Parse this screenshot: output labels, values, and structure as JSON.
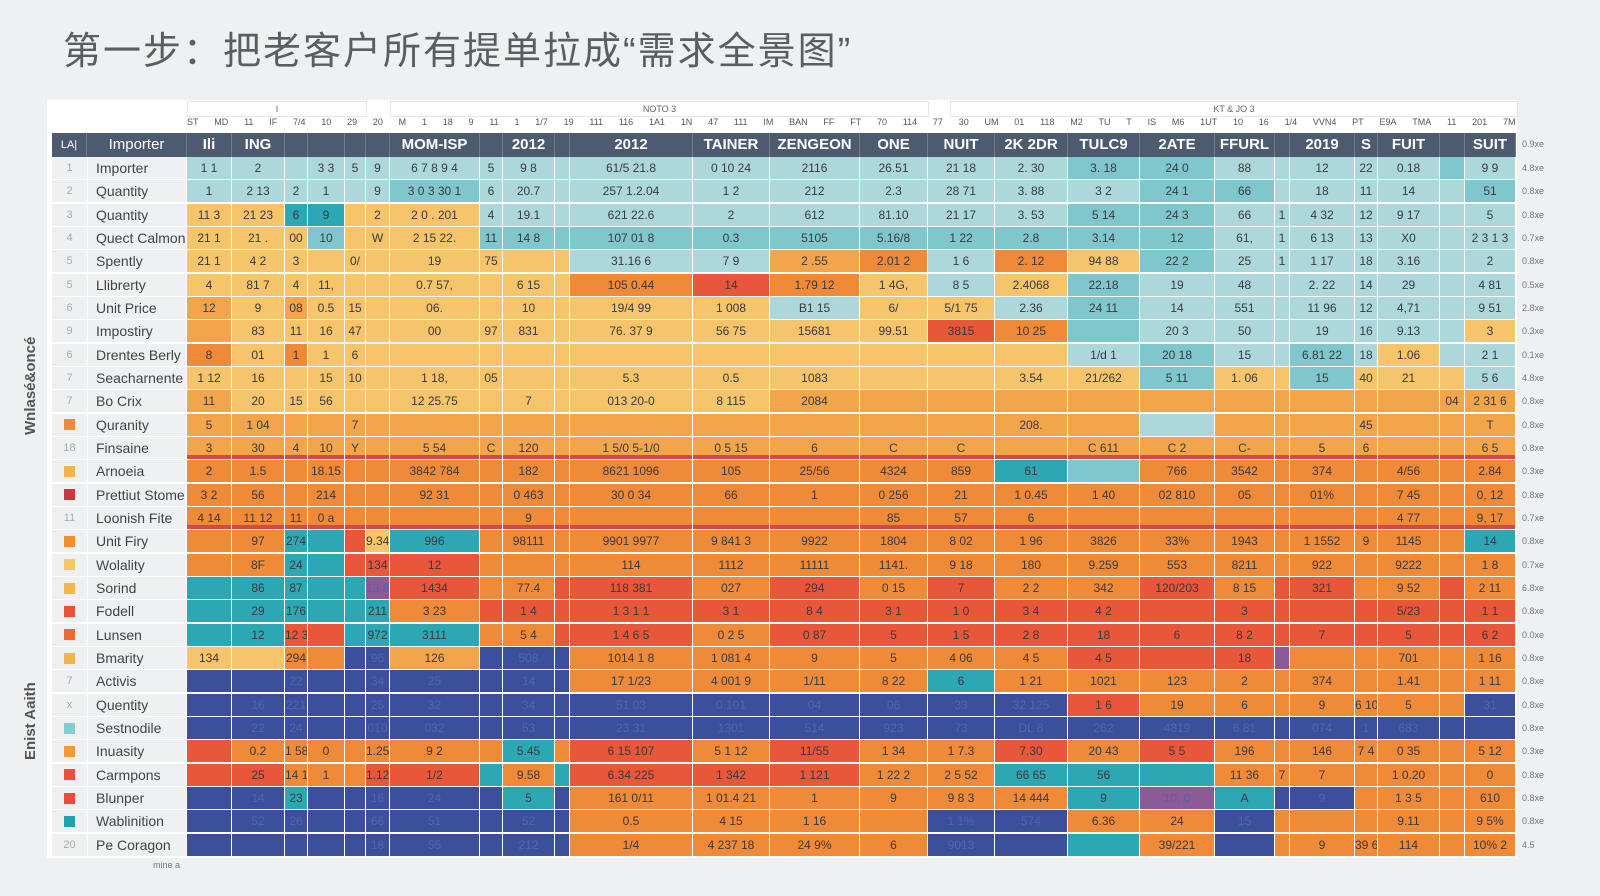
{
  "title": "第一步：把老客户所有提单拉成“需求全景图”",
  "side_labels": [
    "Wnlasé&oncé",
    "Enist Aaith"
  ],
  "footer": "mine a",
  "group_headers": [
    "I",
    "NOTO 3",
    "KT & JO 3"
  ],
  "sub_header_tokens": [
    "ST",
    "MD",
    "11",
    "IF",
    "7/4",
    "10",
    "29",
    "20",
    "M",
    "1",
    "18",
    "9",
    "11",
    "1",
    "1/7",
    "19",
    "111",
    "116",
    "1A1",
    "1N",
    "47",
    "111",
    "IM",
    "BAN",
    "FF",
    "FT",
    "70",
    "114",
    "77",
    "30",
    "UM",
    "01",
    "118",
    "M2",
    "TU",
    "T",
    "IS",
    "M6",
    "1UT",
    "10",
    "16",
    "1/4",
    "VVN4",
    "PT",
    "E9A",
    "TMA",
    "11",
    "201",
    "7M"
  ],
  "chart_data": {
    "type": "heatmap",
    "palette": {
      "t": "#acd8dc",
      "m": "#7fc6cd",
      "T": "#2ea7b5",
      "y": "#f6c46b",
      "o": "#f3a54c",
      "O": "#ef8a38",
      "r": "#e9573b",
      "b": "#3c4f9c",
      "p": "#8c5a94"
    },
    "header_index": "LA|",
    "header_label": "Importer",
    "columns": [
      "",
      "Ili",
      "ING",
      "",
      "",
      "",
      "",
      "MOM-ISP",
      "",
      "2012",
      "",
      "2012",
      "TAINER",
      "ZENGEON",
      "ONE",
      "NUIT",
      "2K 2DR",
      "TULC9",
      "2ATE",
      "FFURL",
      "",
      "2019",
      "S",
      "FUIT",
      "",
      "SUIT"
    ],
    "header_right": "0.9xe",
    "rows": [
      {
        "idx": "1",
        "label": "Importer",
        "right": "4.8xe",
        "colors": "ttttttttttttttttmmtttttmt",
        "values": [
          "1 1",
          "2",
          "",
          "3 3",
          "5",
          "9",
          "6 7 8 9 4",
          "5",
          "9 8",
          "",
          "61/5   21.8",
          "0 10  24",
          "2116",
          "26.51",
          "21 18",
          "2. 30",
          "3. 18",
          "24 0",
          "88",
          "",
          "12",
          "22",
          "0.18",
          "",
          "9 9"
        ]
      },
      {
        "idx": "2",
        "label": "Quantity",
        "right": "0.8xe",
        "colors": "ttttttmttttttttttmmtttttm",
        "values": [
          "1",
          "2 13",
          "2",
          "1",
          "",
          "9",
          "3 0 3 30 1",
          "6",
          "20.7",
          "",
          "257   1.2.04",
          "1 2",
          "212",
          "2.3",
          "28 71",
          "3. 88",
          "3 2",
          "24 1",
          "66",
          "",
          "18",
          "11",
          "14",
          "",
          "51"
        ]
      },
      {
        "idx": "3",
        "label": "Quantity",
        "right": "0.8xe",
        "colors": "yyTTyyytttttttttmmttttttt",
        "values": [
          "11 3",
          "21 23",
          "6",
          "9",
          "",
          "2",
          "2 0 .  201",
          "4",
          "19.1",
          "",
          "621   22.6",
          "2",
          "612",
          "81.10",
          "21 17",
          "3. 53",
          "5 14",
          "24 3",
          "66",
          "1",
          "4 32",
          "12",
          "9 17",
          "",
          "5"
        ]
      },
      {
        "idx": "4",
        "label": "Quect Calmon",
        "right": "0.7xe",
        "colors": "yyymyyymmmmmmmmmmmttttttt",
        "values": [
          "21 1",
          "21 .",
          "00",
          "10",
          "",
          "W",
          "2 15  22.",
          "11",
          "14 8",
          "",
          "107   01 8",
          "0.3",
          "5105",
          "5.16/8",
          "1   22",
          "2.8",
          "3.14",
          "12",
          "61,",
          "1",
          "6 13",
          "13",
          "X0",
          "",
          "2 3 1 3"
        ]
      },
      {
        "idx": "5",
        "label": "Spently",
        "right": "0.8xe",
        "colors": "yyyyyyyyyyttoOtOymttttttt",
        "values": [
          "21 1",
          "4 2",
          "3",
          "",
          "0/",
          "",
          "19",
          "75",
          "",
          "",
          "31.16   6",
          "7 9",
          "2 .55",
          "2.01 2",
          "1  6",
          "2. 12",
          "94 88",
          "22 2",
          "25",
          "1",
          "1 17",
          "18",
          "3.16",
          "",
          "2"
        ]
      },
      {
        "idx": "5",
        "label": "Llibrerty",
        "right": "0.5xe",
        "colors": "yyyyyyyyyyOrOytymtttttttt",
        "values": [
          "4",
          "81 7",
          "4",
          "11,",
          "",
          "",
          "0.7  57,",
          "",
          "6 15",
          "",
          "105   0.44",
          "14",
          "1.79 12",
          "1 4G,",
          "8 5",
          "2.4068",
          "22.18",
          "19",
          "48",
          "",
          "2. 22",
          "14",
          "29",
          "",
          "4 81"
        ]
      },
      {
        "idx": "6",
        "label": "Unit Price",
        "right": "2.8xe",
        "colors": "oyoyyyyyyyyytyytmtttttttt",
        "values": [
          "12",
          "9",
          "08",
          "0.5",
          "15",
          "",
          "06.",
          "",
          "10",
          "",
          "19/4   99",
          "1 008",
          "B1 15",
          "6/",
          "5/1 75",
          "2.36",
          "24 11",
          "14",
          "551",
          "",
          "11 96",
          "12",
          "4,71",
          "",
          "9 51"
        ]
      },
      {
        "idx": "9",
        "label": "Impostiry",
        "right": "0.3xe",
        "colors": "oyyyyyyyyyyyyyrOmttttttty",
        "values": [
          "",
          "83",
          "11",
          "16",
          "47",
          "",
          "00",
          "97",
          "831",
          "",
          "76.   37 9",
          "56  75",
          "15681",
          "99.51",
          "3815",
          "10 25",
          "",
          "20 3",
          "50",
          "",
          "19",
          "16",
          "9.13",
          "",
          "3"
        ]
      },
      {
        "idx": "6",
        "label": "Drentes Berly",
        "right": "0.1xe",
        "colors": "OyOyyyyyyyyyyyyytmttmtytt",
        "values": [
          "8",
          "01",
          "1",
          "1",
          "6",
          "",
          "",
          "",
          "",
          "",
          "",
          "",
          "",
          "",
          "",
          "",
          "1/d 1",
          "20 18",
          "15",
          "",
          "6.81 22",
          "18",
          "1.06",
          "",
          "2 1"
        ]
      },
      {
        "idx": "7",
        "label": "Seacharnente",
        "right": "4.8xe",
        "colors": "yyyyyyyyyyyyyyyyymyymyyyt",
        "values": [
          "1 12",
          "16",
          "",
          "15",
          "10",
          "",
          "1  18,",
          "05",
          "",
          "",
          "5.3",
          "0.5",
          "1083",
          "",
          "",
          "3.54",
          "21/262",
          "5 11",
          "1. 06",
          "",
          "15",
          "40",
          "21",
          "",
          "5 6"
        ]
      },
      {
        "idx": "7",
        "label": "Bo Crix",
        "right": "0.8xe",
        "colors": "oyyyyyyyyyyyooooooooooooo",
        "values": [
          "11",
          "20",
          "15",
          "56",
          "",
          "",
          "12 25.75",
          "",
          "7",
          "",
          "013   20-0",
          "8 115",
          "2084",
          "",
          "",
          "",
          "",
          "",
          "",
          "",
          "",
          "",
          "",
          "04",
          "2 31 6"
        ]
      },
      {
        "idx": "",
        "square": "#f08a3a",
        "label": "Quranity",
        "right": "0.8xe",
        "colors": "oooooooooooooooootoooooooo",
        "values": [
          "5",
          "1 04",
          "",
          "",
          "7",
          "",
          "",
          "",
          "",
          "",
          "",
          "",
          "",
          "",
          "",
          "208.",
          "",
          "",
          "",
          "",
          "",
          "45",
          "",
          "",
          "T"
        ]
      },
      {
        "idx": "18",
        "label": "Finsaine",
        "right": "0.8xe",
        "colors": "ooooooooooooooooooooooooo",
        "redline": true,
        "values": [
          "3",
          "30",
          "4",
          "10",
          "Y",
          "",
          "5  54",
          "C",
          "120",
          "",
          "1 5/0   5-1/0",
          "0 5 15",
          "6",
          "C",
          "C",
          "",
          "C 611",
          "C 2",
          "C-",
          "",
          "5",
          "6",
          "",
          "",
          "6 5"
        ]
      },
      {
        "idx": "",
        "square": "#f3b44f",
        "label": "Arnoeia",
        "right": "0.3xe",
        "colors": "OOOOOOOOOOOOOOOTmOOOOOOOO",
        "values": [
          "2",
          "1.5",
          "",
          "18.15",
          "",
          "",
          "3842  784",
          "",
          "182",
          "",
          "8621   1096",
          "105",
          "25/56",
          "4324",
          "859",
          "61",
          "",
          "766",
          "3542",
          "",
          "374",
          "",
          "4/56",
          "",
          "2.84"
        ]
      },
      {
        "idx": "",
        "square": "#c8373f",
        "label": "Prettiut Stome",
        "right": "0.8xe",
        "colors": "OOOOOOOOOOOOOOOOOOOOOOOOO",
        "values": [
          "3 2",
          "56",
          "",
          "214",
          "",
          "",
          "92   31",
          "",
          "0 463",
          "",
          "30   0 34",
          "66",
          "1",
          "0 256",
          "21",
          "1 0.45",
          "1 40",
          "02 810",
          "05",
          "",
          "01%",
          "",
          "7 45",
          "",
          "0, 12"
        ]
      },
      {
        "idx": "11",
        "label": "Loonish Fite",
        "right": "0.7xe",
        "colors": "OOOOOOOOOOOOOOOOOOOOOOOOO",
        "redline": true,
        "values": [
          "4 14",
          "11 12",
          "11",
          "0 a",
          "",
          "",
          "",
          "",
          "9",
          "",
          "",
          "",
          "",
          "85",
          "57",
          "6",
          "",
          "",
          "",
          "",
          "",
          "",
          "4 77",
          "",
          "9, 17"
        ]
      },
      {
        "idx": "",
        "square": "#f0902f",
        "label": "Unit Firy",
        "right": "0.8xe",
        "colors": "OOTTryTOOOOOOOOOOOOOOOOOT",
        "values": [
          "",
          "97",
          "274",
          "",
          "",
          "9.34",
          "996",
          "",
          "98111",
          "",
          "9901   9977",
          "9 841 3",
          "9922",
          "1804",
          "8 02",
          "1 96",
          "3826",
          "33%",
          "1943",
          "",
          "1 1552",
          "9",
          "1145",
          "",
          "14"
        ]
      },
      {
        "idx": "",
        "square": "#f3c765",
        "label": "Wolality",
        "right": "0.7xe",
        "colors": "OOTTrrrOOOOOOOOOOOOOOOOOO",
        "values": [
          "",
          "8F",
          "24",
          "",
          "",
          "134",
          "12",
          "",
          "",
          "",
          "114",
          "1112",
          "11111",
          "1141.",
          "9 18",
          "180",
          "9.259",
          "553",
          "8211",
          "",
          "922",
          "",
          "9222",
          "",
          "1 8"
        ]
      },
      {
        "idx": "",
        "square": "#f3b64c",
        "label": "Sorind",
        "right": "6.8xe",
        "colors": "TTTTTprOOrrOrOrOOrOrrOOrO",
        "values": [
          "",
          "86",
          "87",
          "",
          "",
          "13.85",
          "1434",
          "",
          "77.4",
          "",
          "118   381",
          "027",
          "294",
          "0 15",
          "7",
          "2 2",
          "342",
          "120/203",
          "8 15",
          "",
          "321",
          "",
          "9 52",
          "",
          "2 11"
        ]
      },
      {
        "idx": "",
        "square": "#e9523a",
        "label": "Fodell",
        "right": "0.8xe",
        "colors": "TTTTTTOrrrrrrrrrrrrrrrrrr",
        "values": [
          "",
          "29",
          "176",
          "",
          "",
          "211",
          "3 23",
          "",
          "1 4",
          "",
          "1 3   1 1",
          "3 1",
          "8 4",
          "3 1",
          "1 0",
          "3 4",
          "4 2",
          "",
          "3",
          "",
          "",
          "",
          "5/23",
          "",
          "1 1"
        ]
      },
      {
        "idx": "",
        "square": "#ec6a35",
        "label": "Lunsen",
        "right": "0.0xe",
        "colors": "TTrrTTTOOrrOrrrrrrrrrrrrr",
        "values": [
          "",
          "12",
          "12 3",
          "",
          "",
          "972",
          "3111",
          "",
          "5 4",
          "",
          "1 4   6 5",
          "0 2 5",
          "0 87",
          "5",
          "1 5",
          "2 8",
          "18",
          "6",
          "8 2",
          "",
          "7",
          "",
          "5",
          "",
          "6 2"
        ]
      },
      {
        "idx": "",
        "square": "#efb44a",
        "label": "Bmarity",
        "right": "0.8xe",
        "colors": "yyOObbobbbOOOOOOrrrpOOOOO",
        "values": [
          "134",
          "",
          "294",
          "",
          "",
          "96",
          "126",
          "",
          "508",
          "",
          "1014   1 8",
          "1 081 4",
          "9",
          "5",
          "4 06",
          "4 5",
          "4 5",
          "",
          "18",
          "",
          "",
          "",
          "701",
          "",
          "1 16"
        ]
      },
      {
        "idx": "7",
        "label": "Activis",
        "right": "0.8xe",
        "colors": "bbbbbbbbbbOOOOTOOOOOOOOOO",
        "values": [
          "",
          "",
          "22",
          "",
          "",
          "34",
          "25",
          "",
          "14",
          "",
          "17   1/23",
          "4 001 9",
          "1/11",
          "8 22",
          "6",
          "1 21",
          "1021",
          "123",
          "2",
          "",
          "374",
          "",
          "1.41",
          "",
          "1 11"
        ]
      },
      {
        "idx": "x",
        "label": "Quentity",
        "right": "0.8xe",
        "colors": "bbbbbbbbbbbbbbbbrOOOOOOOb",
        "values": [
          "",
          "16",
          "221",
          "",
          "",
          "25",
          "32",
          "",
          "34",
          "",
          "51   03",
          "0 101",
          "04",
          "06",
          "33",
          "32 125",
          "1 6",
          "19",
          "6",
          "",
          "9",
          "6 10",
          "5",
          "",
          "31"
        ]
      },
      {
        "idx": "",
        "square": "#86cbd0",
        "label": "Sestnodile",
        "right": "0.8xe",
        "colors": "bbbbbbbbbbbbbbbbbbbbbbbbb",
        "values": [
          "",
          "22",
          "24",
          "",
          "",
          "010",
          "032",
          "",
          "53",
          "",
          "23   31",
          "1301",
          "514",
          "923",
          "73",
          "DL 8",
          "262",
          "4819",
          "6 81",
          "",
          "074",
          "1",
          "683",
          "",
          ""
        ]
      },
      {
        "idx": "",
        "square": "#f09a3c",
        "label": "Inuasity",
        "right": "0.3xe",
        "colors": "rOOOOOOOTOrOrOOrOrOOOOOOO",
        "values": [
          "",
          "0.2",
          "1 58",
          "0",
          "",
          "1.25",
          "9 2",
          "",
          "5.45",
          "",
          "6 15   107",
          "5 1 12",
          "11/55",
          "1 34",
          "1 7.3",
          "7.30",
          "20 43",
          "5 5",
          "196",
          "",
          "146",
          "7 4",
          "0 35",
          "",
          "5 12"
        ]
      },
      {
        "idx": "",
        "square": "#e9523a",
        "label": "Carmpons",
        "right": "0.8xe",
        "colors": "rrOOOrrTOTrrrOOTTTOOOOOOO",
        "values": [
          "",
          "25",
          "14 1",
          "1",
          "",
          "1.12",
          "1/2",
          "",
          "9.58",
          "",
          "6.34   225",
          "1 342",
          "1 121",
          "1 22 2",
          "2 5 52",
          "66 65",
          "56",
          "",
          "11 36",
          "7",
          "7",
          "",
          "1 0.20",
          "",
          "0"
        ]
      },
      {
        "idx": "",
        "square": "#e64e36",
        "label": "Blunper",
        "right": "0.8xe",
        "colors": "bbTbbbbbTbOOOOOOTpTbbOOOO",
        "values": [
          "",
          "14",
          "23",
          "",
          "",
          "16",
          "24",
          "",
          "5",
          "",
          "161   0/11",
          "1 01.4 21",
          "1",
          "9",
          "9 8 3",
          "14 444",
          "9",
          "10, 0",
          "A",
          "",
          "9",
          "",
          "1 3 5",
          "",
          "610"
        ]
      },
      {
        "idx": "",
        "square": "#20a1ad",
        "label": "Wablinition",
        "right": "0.8xe",
        "colors": "bbbbbbbbbbOOOObbOObOOOOOO",
        "values": [
          "",
          "52",
          "26",
          "",
          "",
          "66",
          "51",
          "",
          "52",
          "",
          "0.5",
          "4 15",
          "1 16",
          "",
          "1 1%",
          "574",
          "6.36",
          "24",
          "15",
          "",
          "",
          "",
          "9.11",
          "",
          "9 5%"
        ]
      },
      {
        "idx": "20",
        "label": "Pe Coragon",
        "right": "4.5",
        "colors": "bbbbbbbbbbOOOObbTObOOOOOO",
        "values": [
          "",
          "",
          "",
          "",
          "",
          "18",
          "55",
          "",
          "212",
          "",
          "1/4",
          "4 237  18",
          "24 9%",
          "6",
          "9013",
          "",
          "",
          "39/221",
          "",
          "",
          "9",
          "39 6",
          "114",
          "",
          "10% 2"
        ]
      }
    ]
  }
}
